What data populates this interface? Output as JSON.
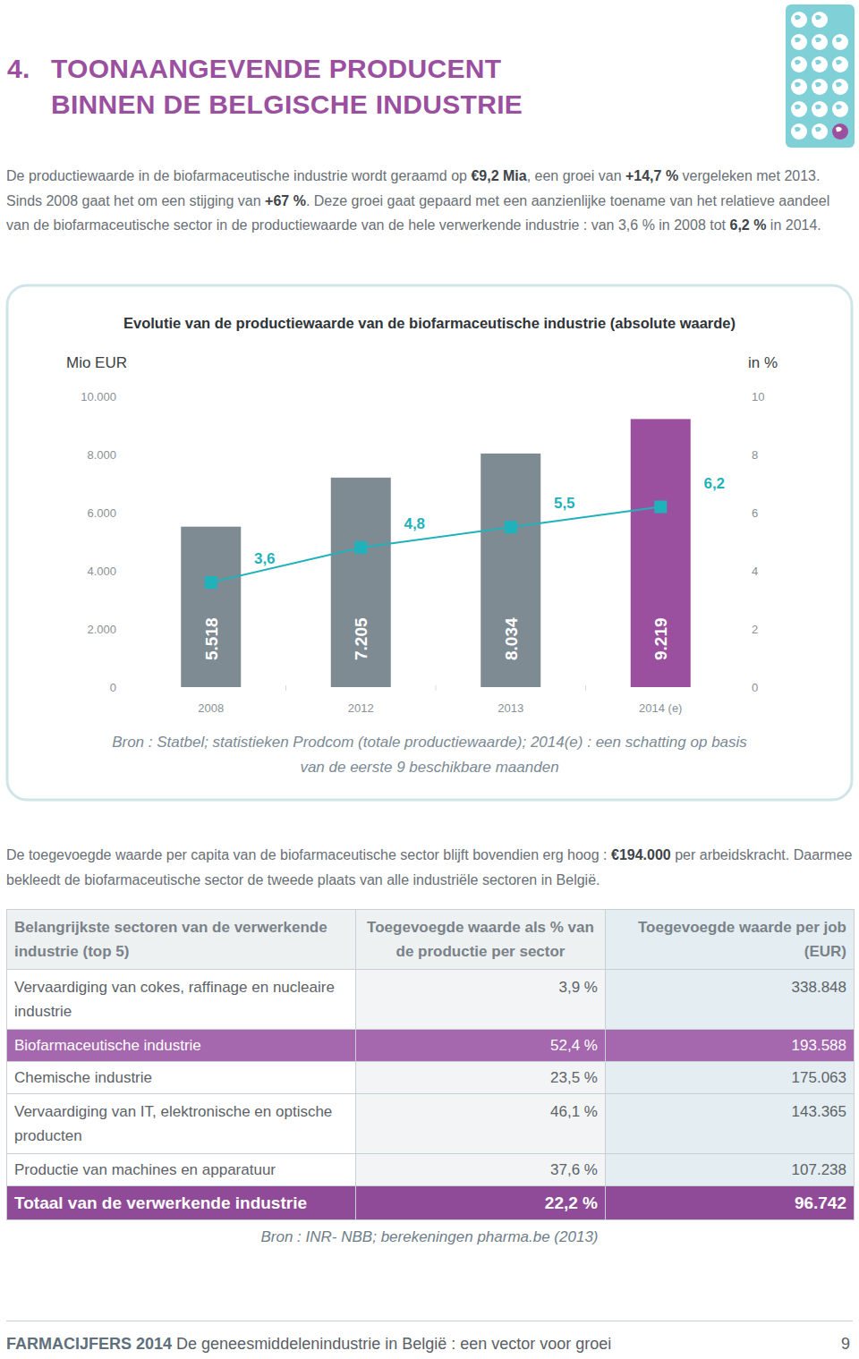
{
  "header": {
    "number": "4.",
    "title_line1": "TOONAANGEVENDE PRODUCENT",
    "title_line2": "BINNEN DE BELGISCHE INDUSTRIE"
  },
  "intro": [
    {
      "text": "De productiewaarde in de biofarmaceutische industrie wordt geraamd op ",
      "bold": false
    },
    {
      "text": "€9,2 Mia",
      "bold": true
    },
    {
      "text": ", een groei van ",
      "bold": false
    },
    {
      "text": "+14,7 %",
      "bold": true
    },
    {
      "text": " vergeleken met 2013. Sinds 2008 gaat het om een stijging van ",
      "bold": false
    },
    {
      "text": "+67 %",
      "bold": true
    },
    {
      "text": ". Deze groei gaat gepaard met een aanzienlijke toename van het relatieve aandeel van de biofarmaceutische sector in de productiewaarde van de hele verwerkende industrie : van 3,6 % in 2008 tot ",
      "bold": false
    },
    {
      "text": "6,2 %",
      "bold": true
    },
    {
      "text": " in 2014.",
      "bold": false
    }
  ],
  "chart_data": {
    "type": "bar",
    "title": "Evolutie van de productiewaarde van de biofarmaceutische industrie (absolute waarde)",
    "y_label": "Mio EUR",
    "y2_label": "in %",
    "categories": [
      "2008",
      "2012",
      "2013",
      "2014 (e)"
    ],
    "series": [
      {
        "type": "bar",
        "colors": [
          "#7f8b93",
          "#7f8b93",
          "#7f8b93",
          "#9a4f9f"
        ],
        "values": [
          5518,
          7205,
          8034,
          9219
        ],
        "value_labels": [
          "5.518",
          "7.205",
          "8.034",
          "9.219"
        ]
      },
      {
        "type": "line",
        "axis": "y2",
        "color": "#1fb2bb",
        "marker": "square",
        "values": [
          3.6,
          4.8,
          5.5,
          6.2
        ],
        "value_labels": [
          "3,6",
          "4,8",
          "5,5",
          "6,2"
        ]
      }
    ],
    "ylim": [
      0,
      10000
    ],
    "yticks": [
      0,
      {
        "value": 2000,
        "label": "2.000"
      },
      {
        "value": 4000,
        "label": "4.000"
      },
      {
        "value": 6000,
        "label": "6.000"
      },
      {
        "value": 8000,
        "label": "8.000"
      },
      {
        "value": 10000,
        "label": "10.000"
      }
    ],
    "y2lim": [
      0,
      10
    ],
    "y2ticks": [
      0,
      2,
      4,
      6,
      8,
      10
    ],
    "grid": false,
    "data_labels": true,
    "source": "Bron : Statbel; statistieken Prodcom (totale productiewaarde); 2014(e) : een schatting op basis van de eerste 9 beschikbare maanden"
  },
  "paragraph2": [
    {
      "text": "De toegevoegde waarde per capita van de biofarmaceutische sector blijft bovendien erg hoog : ",
      "bold": false
    },
    {
      "text": "€194.000",
      "bold": true
    },
    {
      "text": " per arbeidskracht. Daarmee bekleedt de biofarmaceutische sector de tweede plaats van alle industriële sectoren in België.",
      "bold": false
    }
  ],
  "table": {
    "header": [
      "Belangrijkste sectoren van de verwerkende industrie (top 5)",
      "Toegevoegde waarde als % van de productie per sector",
      "Toegevoegde waarde per job (EUR)"
    ],
    "rows": [
      [
        "Vervaardiging van cokes, raffinage en nucleaire industrie",
        "3,9 %",
        "338.848"
      ],
      [
        "Biofarmaceutische industrie",
        "52,4 %",
        "193.588"
      ],
      [
        "Chemische industrie",
        "23,5 %",
        "175.063"
      ],
      [
        "Vervaardiging van IT, elektronische en optische producten",
        "46,1 %",
        "143.365"
      ],
      [
        "Productie van machines en apparatuur",
        "37,6 %",
        "107.238"
      ]
    ],
    "total": [
      "Totaal van de verwerkende industrie",
      "22,2 %",
      "96.742"
    ],
    "source": "Bron : INR- NBB; berekeningen pharma.be (2013)"
  },
  "footer": {
    "brand": "FARMACIJFERS 2014",
    "text": " De geneesmiddelenindustrie in België : een vector voor groei",
    "page": "9"
  }
}
